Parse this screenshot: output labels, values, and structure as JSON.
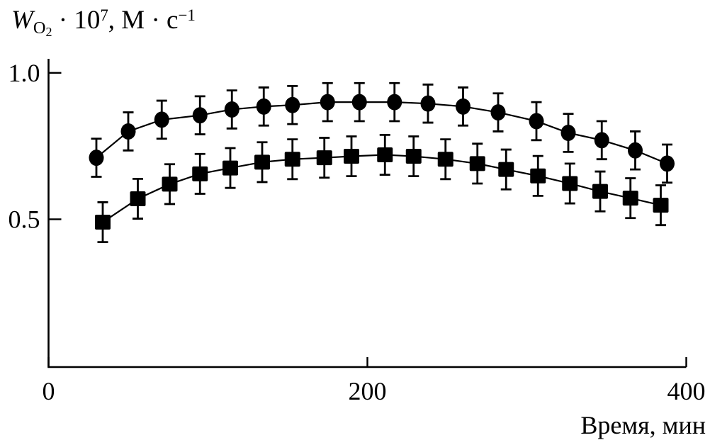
{
  "figure": {
    "background": "#ffffff",
    "ink": "#000000"
  },
  "y_axis_title": {
    "variable": "W",
    "variable_sub": "O",
    "variable_sub_sub": "2",
    "multiplier": " · 10",
    "exponent": "7",
    "units": ", М · с",
    "units_exponent": "−1"
  },
  "x_axis_title": "Время, мин",
  "chart_data": {
    "type": "line",
    "title": "",
    "xlabel": "Время, мин",
    "ylabel": "W_O2 · 10^7, М · с^−1",
    "xlim": [
      0,
      400
    ],
    "ylim": [
      0,
      1.05
    ],
    "x_ticks": [
      0,
      200,
      400
    ],
    "x_tick_labels": [
      "0",
      "200",
      "400"
    ],
    "y_ticks": [
      0.5,
      1.0
    ],
    "y_tick_labels": [
      "0.5",
      "1.0"
    ],
    "grid": false,
    "legend": "none",
    "series": [
      {
        "name": "circles",
        "marker": "circle",
        "color": "#000000",
        "y_error": 0.065,
        "x": [
          30,
          50,
          71,
          95,
          115,
          135,
          153,
          175,
          195,
          217,
          238,
          260,
          282,
          306,
          326,
          347,
          368,
          388
        ],
        "y": [
          0.71,
          0.8,
          0.84,
          0.855,
          0.875,
          0.885,
          0.89,
          0.9,
          0.9,
          0.9,
          0.895,
          0.885,
          0.865,
          0.835,
          0.795,
          0.77,
          0.735,
          0.69
        ]
      },
      {
        "name": "squares",
        "marker": "square",
        "color": "#000000",
        "y_error": 0.068,
        "x": [
          34,
          56,
          76,
          95,
          114,
          134,
          153,
          173,
          190,
          211,
          229,
          249,
          269,
          287,
          307,
          327,
          346,
          365,
          384
        ],
        "y": [
          0.49,
          0.57,
          0.62,
          0.655,
          0.675,
          0.695,
          0.705,
          0.71,
          0.715,
          0.72,
          0.715,
          0.705,
          0.69,
          0.67,
          0.648,
          0.622,
          0.595,
          0.572,
          0.548
        ]
      }
    ]
  }
}
